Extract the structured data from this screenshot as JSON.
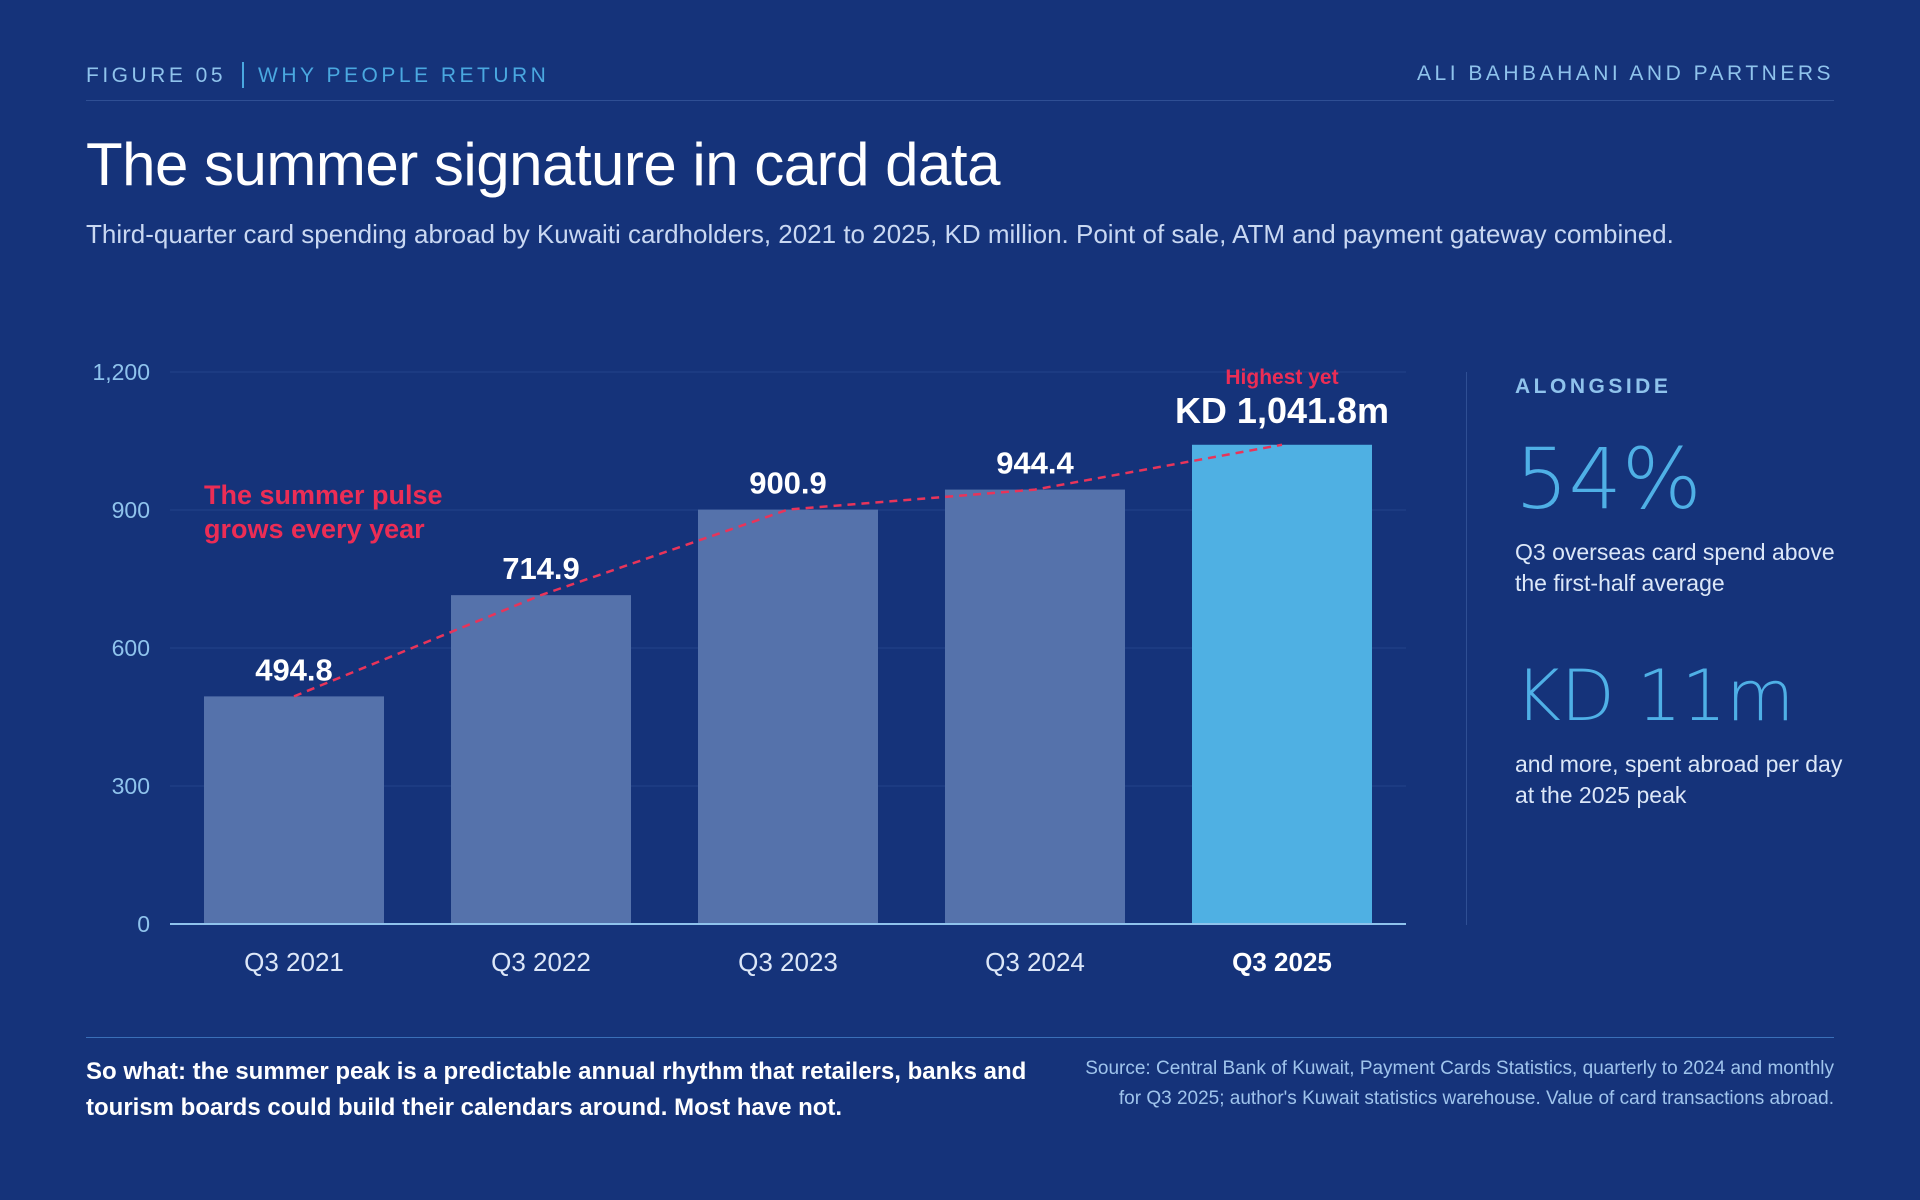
{
  "header": {
    "figure": "FIGURE 05",
    "topic": "WHY PEOPLE RETURN",
    "org": "ALI BAHBAHANI AND PARTNERS"
  },
  "title": "The summer signature in card data",
  "subtitle": "Third-quarter card spending abroad by Kuwaiti cardholders, 2021 to 2025, KD million. Point of sale, ATM and payment gateway combined.",
  "chart_data": {
    "type": "bar",
    "categories": [
      "Q3 2021",
      "Q3 2022",
      "Q3 2023",
      "Q3 2024",
      "Q3 2025"
    ],
    "values": [
      494.8,
      714.9,
      900.9,
      944.4,
      1041.8
    ],
    "value_labels": [
      "494.8",
      "714.9",
      "900.9",
      "944.4",
      "KD 1,041.8m"
    ],
    "highlight_index": 4,
    "ylim": [
      0,
      1200
    ],
    "yticks": [
      0,
      300,
      600,
      900,
      1200
    ],
    "ytick_labels": [
      "0",
      "300",
      "600",
      "900",
      "1,200"
    ],
    "grid": true,
    "trend_line": true,
    "annotations": {
      "pulse_line1": "The summer pulse",
      "pulse_line2": "grows every year",
      "peak": "Highest yet"
    },
    "colors": {
      "bar": "#5572ab",
      "highlight": "#4fb0e3",
      "trend": "#e8345a",
      "axis": "#8fc3ec",
      "grid": "#22438a",
      "annotation": "#ec2d55"
    }
  },
  "sidebar": {
    "heading": "ALONGSIDE",
    "stat1_value": "54%",
    "stat1_text": "Q3 overseas card spend above the first-half average",
    "stat2_value": "KD 11m",
    "stat2_text": "and more, spent abroad per day at the 2025 peak"
  },
  "footer": {
    "so_what": "So what: the summer peak is a predictable annual rhythm that retailers, banks and tourism boards could build their calendars around. Most have not.",
    "source": "Source: Central Bank of Kuwait, Payment Cards Statistics, quarterly to 2024 and monthly for Q3 2025; author's Kuwait statistics warehouse. Value of card transactions abroad."
  }
}
